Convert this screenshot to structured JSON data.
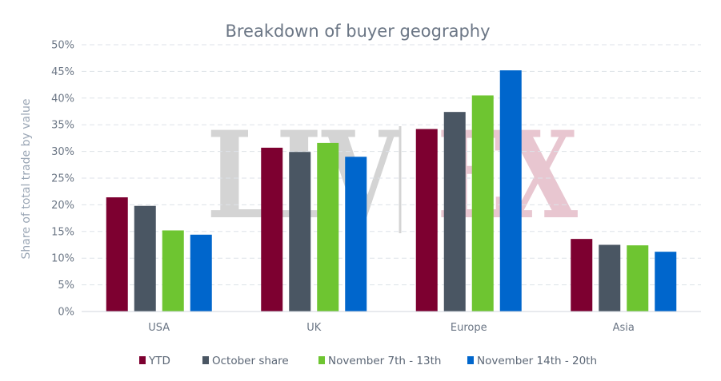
{
  "chart_data": {
    "type": "bar",
    "title": "Breakdown of buyer geography",
    "ylabel": "Share of total trade by value",
    "xlabel": "",
    "categories": [
      "USA",
      "UK",
      "Europe",
      "Asia"
    ],
    "series": [
      {
        "name": "YTD",
        "color": "#7d0030",
        "values": [
          21.4,
          30.7,
          34.2,
          13.6
        ]
      },
      {
        "name": "October share",
        "color": "#4a5663",
        "values": [
          19.8,
          29.9,
          37.4,
          12.5
        ]
      },
      {
        "name": "November 7th - 13th",
        "color": "#6ec531",
        "values": [
          15.2,
          31.6,
          40.5,
          12.4
        ]
      },
      {
        "name": "November 14th - 20th",
        "color": "#0066cc",
        "values": [
          14.4,
          29.0,
          45.2,
          11.2
        ]
      }
    ],
    "ylim": [
      0,
      50
    ],
    "yticks": [
      "0%",
      "5%",
      "10%",
      "15%",
      "20%",
      "25%",
      "30%",
      "35%",
      "40%",
      "45%",
      "50%"
    ],
    "grid": true,
    "legend": "bottom"
  },
  "watermark": {
    "left": "LIV",
    "right": "EX",
    "left_color": "#d4d4d4",
    "right_color": "#e8c6d0"
  }
}
